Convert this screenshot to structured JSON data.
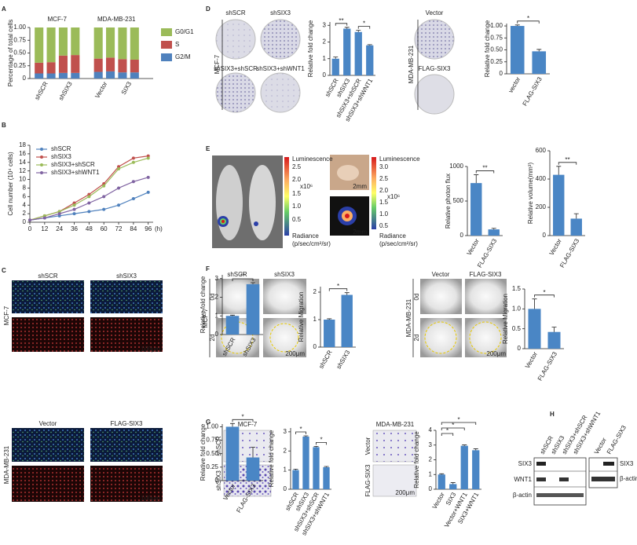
{
  "chart_data": [
    {
      "type": "stacked_bar",
      "group_labels": [
        "MCF-7",
        "MDA-MB-231"
      ],
      "ylabel": "Percentage of total cells",
      "categories": [
        "shSCR",
        null,
        "shSIX3",
        null,
        "Vector",
        null,
        "SIX3",
        null
      ],
      "series": [
        {
          "name": "G2/M",
          "color": "#4f81bd",
          "values": [
            0.1,
            0.1,
            0.11,
            0.11,
            0.13,
            0.14,
            0.12,
            0.12
          ]
        },
        {
          "name": "S",
          "color": "#c0504d",
          "values": [
            0.21,
            0.22,
            0.34,
            0.35,
            0.26,
            0.27,
            0.26,
            0.25
          ]
        },
        {
          "name": "G0/G1",
          "color": "#9bbb59",
          "values": [
            0.69,
            0.68,
            0.55,
            0.54,
            0.61,
            0.59,
            0.62,
            0.63
          ]
        }
      ],
      "ylim": [
        0,
        1
      ],
      "yticks": [
        0,
        0.25,
        {
          "value": 0.5,
          "label": "0.50"
        },
        0.75,
        {
          "value": 1,
          "label": "1.00"
        }
      ]
    },
    {
      "type": "line",
      "ylabel": "Cell number (10⁴ cells)",
      "xlabel": "(h)",
      "x": [
        0,
        12,
        24,
        36,
        48,
        60,
        72,
        84,
        96
      ],
      "series": [
        {
          "name": "shSCR",
          "color": "#4f81bd",
          "values": [
            0.5,
            1,
            1.5,
            2,
            2.5,
            3,
            4,
            5.5,
            7
          ]
        },
        {
          "name": "shSIX3",
          "color": "#c0504d",
          "values": [
            0.5,
            1.5,
            2.5,
            4.5,
            6.5,
            9,
            13,
            15,
            15.5
          ]
        },
        {
          "name": "shSIX3+shSCR",
          "color": "#9bbb59",
          "values": [
            0.5,
            1.5,
            2.5,
            4,
            6,
            8.5,
            12.5,
            14,
            15
          ]
        },
        {
          "name": "shSIX3+shWNT1",
          "color": "#8064a2",
          "values": [
            0.5,
            1,
            2,
            3,
            4.5,
            6,
            8,
            9.5,
            10.5
          ]
        }
      ],
      "xlim": [
        0,
        100
      ],
      "xticks": [
        0,
        12,
        24,
        36,
        48,
        60,
        72,
        84,
        96
      ],
      "ylim": [
        0,
        18
      ],
      "yticks": [
        0,
        2,
        4,
        6,
        8,
        10,
        12,
        14,
        16,
        18
      ]
    },
    {
      "type": "bar",
      "ylabel": "Relative fold change",
      "categories": [
        "shSCR",
        "shSIX3"
      ],
      "values": [
        1,
        2.7
      ],
      "errors": [
        0.04,
        0.08
      ],
      "color": "#4a86c5",
      "ylim": [
        0,
        3.2
      ],
      "yticks": [
        0,
        1,
        2,
        3
      ],
      "annotations": [
        "**"
      ]
    },
    {
      "type": "bar",
      "ylabel": "Relative fold change",
      "categories": [
        "Vector",
        "FLAG-SIX3"
      ],
      "values": [
        1,
        0.43
      ],
      "errors": [
        0.06,
        0.19
      ],
      "color": "#4a86c5",
      "ylim": [
        0,
        1.05
      ],
      "yticks": [
        0,
        0.25,
        {
          "value": 0.5,
          "label": "0.50"
        },
        0.75,
        {
          "value": 1,
          "label": "1.00"
        }
      ],
      "annotations": [
        "*"
      ]
    },
    {
      "type": "bar",
      "ylabel": "Relative fold change",
      "categories": [
        "shSCR",
        "shSIX3",
        "shSIX3+shSCR",
        "shSIX3+shWNT1"
      ],
      "values": [
        1,
        2.8,
        2.6,
        1.8
      ],
      "errors": [
        0.1,
        0.08,
        0.1,
        0.04
      ],
      "color": "#4a86c5",
      "ylim": [
        0,
        3.2
      ],
      "yticks": [
        0,
        1,
        2,
        3
      ],
      "annotations": [
        "**",
        "*"
      ]
    },
    {
      "type": "bar",
      "ylabel": "Relative fold change",
      "categories": [
        "vector",
        "FLAG-SIX3"
      ],
      "values": [
        1,
        0.47
      ],
      "errors": [
        0.02,
        0.04
      ],
      "color": "#4a86c5",
      "ylim": [
        0,
        1.05
      ],
      "yticks": [
        0,
        0.25,
        {
          "value": 0.5,
          "label": "0.50"
        },
        0.75,
        {
          "value": 1,
          "label": "1.00"
        }
      ],
      "annotations": [
        "*"
      ]
    },
    {
      "type": "bar",
      "ylabel": "Relative photon flux",
      "categories": [
        "Vector",
        "FLAG-SIX3"
      ],
      "values": [
        760,
        90
      ],
      "errors": [
        120,
        15
      ],
      "color": "#4a86c5",
      "ylim": [
        0,
        1000
      ],
      "yticks": [
        0,
        500,
        1000
      ],
      "annotations": [
        "**"
      ]
    },
    {
      "type": "bar",
      "ylabel": "Relative volume(mm³)",
      "categories": [
        "Vector",
        "FLAG-SIX3"
      ],
      "values": [
        430,
        120
      ],
      "errors": [
        60,
        35
      ],
      "color": "#4a86c5",
      "ylim": [
        0,
        600
      ],
      "yticks": [
        0,
        200,
        400,
        600
      ],
      "annotations": [
        "**"
      ]
    },
    {
      "type": "bar",
      "ylabel": "Relative Migration",
      "categories": [
        "shSCR",
        "shSIX3"
      ],
      "values": [
        1,
        1.9
      ],
      "errors": [
        0.03,
        0.08
      ],
      "color": "#4a86c5",
      "ylim": [
        0,
        2.2
      ],
      "yticks": [
        0,
        1,
        2
      ],
      "annotations": [
        "*"
      ]
    },
    {
      "type": "bar",
      "ylabel": "Relative Migration",
      "categories": [
        "Vector",
        "FLAG-SIX3"
      ],
      "values": [
        1,
        0.42
      ],
      "errors": [
        0.25,
        0.12
      ],
      "color": "#4a86c5",
      "ylim": [
        0,
        1.5
      ],
      "yticks": [
        0,
        0.5,
        {
          "value": 1,
          "label": "1.0"
        },
        1.5
      ],
      "annotations": [
        "*"
      ]
    },
    {
      "type": "bar",
      "ylabel": "Relative fold change",
      "categories": [
        "shSCR",
        "shSIX3",
        "shSIX3+shSCR",
        "shSIX3+shWNT1"
      ],
      "values": [
        1,
        2.75,
        2.2,
        1.15
      ],
      "errors": [
        0.05,
        0.04,
        0.04,
        0.04
      ],
      "color": "#4a86c5",
      "ylim": [
        0,
        3.2
      ],
      "yticks": [
        0,
        1,
        2,
        3
      ],
      "annotations": [
        "*",
        "*"
      ]
    },
    {
      "type": "bar",
      "ylabel": "Relative fold change",
      "categories": [
        "Vector",
        "SIX3",
        "Vector+WNT1",
        "SIX3+WNT1"
      ],
      "values": [
        1,
        0.35,
        2.95,
        2.65
      ],
      "errors": [
        0.05,
        0.1,
        0.06,
        0.1
      ],
      "color": "#4a86c5",
      "ylim": [
        0,
        4
      ],
      "yticks": [
        0,
        1,
        2,
        3,
        4
      ],
      "annotations": [
        "*",
        "*",
        "*"
      ]
    }
  ],
  "labels": [
    "A",
    "B",
    "C",
    "D",
    "E",
    "F",
    "G",
    "H",
    "shSCR",
    "shSIX3",
    "MCF-7",
    "100μm",
    "Vector",
    "FLAG-SIX3",
    "MDA-MB-231",
    "100μm",
    "shSCR",
    "shSIX3",
    "shSIX3+shSCR",
    "shSIX3+shWNT1",
    "MCF-7",
    "Vector",
    "FLAG-SIX3",
    "MDA-MB-231",
    "Luminescence",
    "2.5",
    "2.0",
    "x10⁶",
    "1.5",
    "1.0",
    "0.5",
    "Radiance",
    "(p/sec/cm²/sr)",
    "2mm",
    "2mm",
    "Luminescence",
    "3.0",
    "2.5",
    "2.0",
    "x10⁶",
    "1.5",
    "1.0",
    "0.5",
    "Radiance",
    "(p/sec/cm²/sr)",
    "shSCR",
    "shSIX3",
    "0d",
    "2d",
    "MCF-7",
    "200μm",
    "Vector",
    "FLAG-SIX3",
    "0d",
    "2d",
    "MDA-MB-231",
    "200μm",
    "MCF-7",
    "shSCR",
    "shSIX3",
    "MDA-MB-231",
    "Vector",
    "FLAG-SIX3",
    "200μm",
    "shSCR",
    "shSIX3",
    "shSIX3+shSCR",
    "shSIX3+shWNT1",
    "Vector",
    "FLAG-SIX3",
    "SIX3",
    "WNT1",
    "β-actin",
    "SIX3",
    "β-actin"
  ]
}
